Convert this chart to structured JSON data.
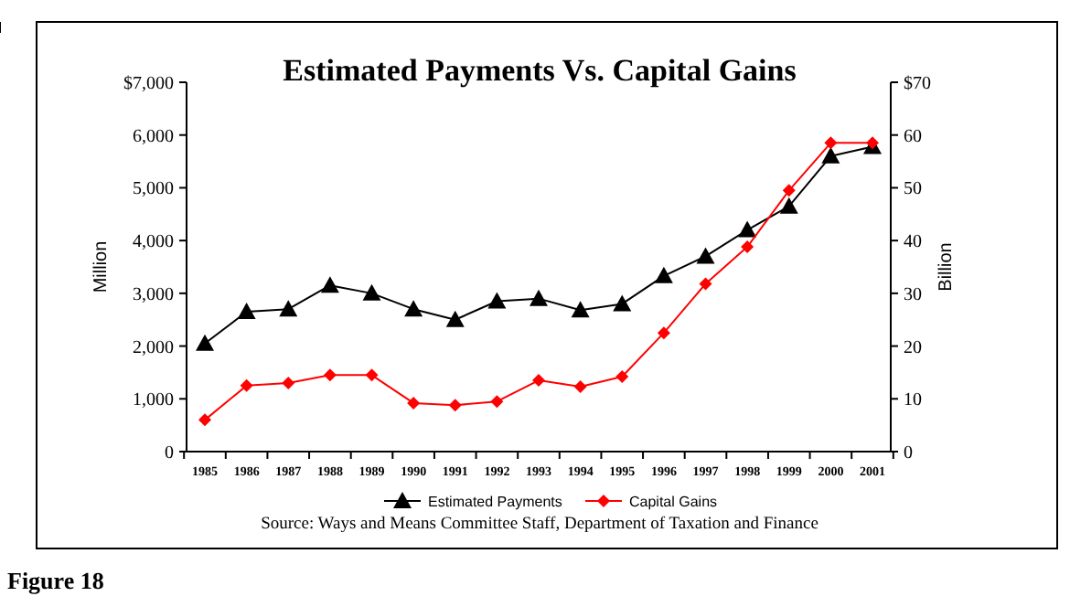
{
  "chart_data": {
    "type": "line",
    "title": "Estimated Payments Vs. Capital Gains",
    "ylabel": "Million",
    "y2label": "Billion",
    "categories": [
      "1985",
      "1986",
      "1987",
      "1988",
      "1989",
      "1990",
      "1991",
      "1992",
      "1993",
      "1994",
      "1995",
      "1996",
      "1997",
      "1998",
      "1999",
      "2000",
      "2001"
    ],
    "series": [
      {
        "name": "Estimated Payments",
        "color": "#000000",
        "marker": "triangle",
        "values": [
          2050,
          2650,
          2700,
          3150,
          3000,
          2700,
          2500,
          2850,
          2900,
          2680,
          2800,
          3330,
          3700,
          4200,
          4650,
          5600,
          5780
        ]
      },
      {
        "name": "Capital Gains",
        "color": "#ff0000",
        "marker": "diamond",
        "axis": "y2",
        "values": [
          6,
          12.5,
          13,
          14.5,
          14.5,
          9.2,
          8.8,
          9.5,
          13.5,
          12.3,
          14.2,
          22.5,
          31.8,
          38.8,
          49.5,
          58.5,
          58.5
        ]
      }
    ],
    "ylim": [
      0,
      7000
    ],
    "yticks": [
      0,
      {
        "value": 1000,
        "label": "1,000"
      },
      {
        "value": 2000,
        "label": "2,000"
      },
      {
        "value": 3000,
        "label": "3,000"
      },
      {
        "value": 4000,
        "label": "4,000"
      },
      {
        "value": 5000,
        "label": "5,000"
      },
      {
        "value": 6000,
        "label": "6,000"
      },
      {
        "value": 7000,
        "label": "$7,000"
      }
    ],
    "y2lim": [
      0,
      70
    ],
    "y2ticks": [
      0,
      10,
      20,
      30,
      40,
      50,
      60,
      {
        "value": 70,
        "label": "$70"
      }
    ],
    "grid": false,
    "legend": "bottom",
    "annotations": [
      "Source: Ways and Means Committee Staff, Department of Taxation and Finance",
      "Figure 18"
    ]
  }
}
